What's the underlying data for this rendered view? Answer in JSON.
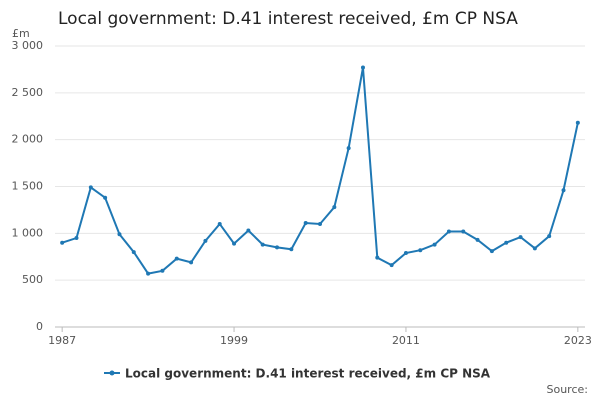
{
  "chart_data": {
    "type": "line",
    "title": "Local government: D.41 interest received, £m CP NSA",
    "y_label": "£m",
    "source": "Source:",
    "x": [
      1987,
      1988,
      1989,
      1990,
      1991,
      1992,
      1993,
      1994,
      1995,
      1996,
      1997,
      1998,
      1999,
      2000,
      2001,
      2002,
      2003,
      2004,
      2005,
      2006,
      2007,
      2008,
      2009,
      2010,
      2011,
      2012,
      2013,
      2014,
      2015,
      2016,
      2017,
      2018,
      2019,
      2020,
      2021,
      2022,
      2023
    ],
    "series": [
      {
        "name": "Local government: D.41 interest received, £m CP NSA",
        "color": "#1f78b4",
        "values": [
          900,
          950,
          1490,
          1380,
          990,
          800,
          570,
          600,
          730,
          690,
          920,
          1100,
          890,
          1030,
          880,
          850,
          830,
          1110,
          1100,
          1280,
          1910,
          2770,
          740,
          660,
          790,
          820,
          880,
          1020,
          1020,
          930,
          810,
          900,
          960,
          840,
          970,
          1460,
          2180
        ]
      }
    ],
    "xlim": [
      1986.5,
      2023.5
    ],
    "xticks": [
      1987,
      1999,
      2011,
      2023
    ],
    "ylim": [
      0,
      3000
    ],
    "yticks": [
      0,
      500,
      {
        "value": 1000,
        "label": "1 000"
      },
      {
        "value": 1500,
        "label": "1 500"
      },
      {
        "value": 2000,
        "label": "2 000"
      },
      {
        "value": 2500,
        "label": "2 500"
      },
      {
        "value": 3000,
        "label": "3 000"
      }
    ],
    "grid": true
  }
}
